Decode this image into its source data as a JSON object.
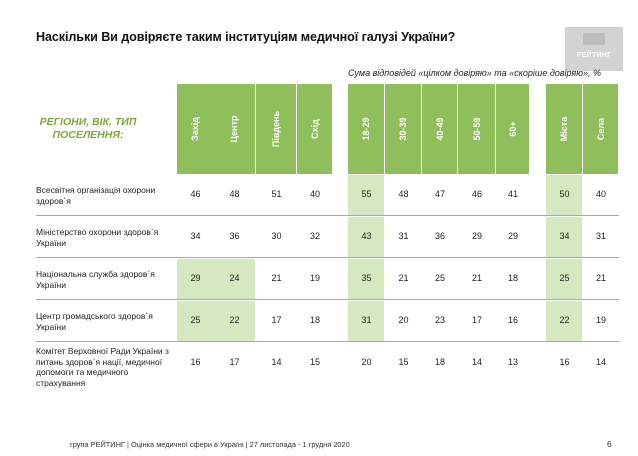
{
  "title": "Наскільки Ви довіряєте таким інституціям медичної галузі України?",
  "logo_text": "РЕЙТИНГ",
  "subtitle": "Сума відповідей «цілком довіряю» та «скоріше довіряю», %",
  "region_label_line1": "РЕГІОНИ, ВІК, ТИП",
  "region_label_line2": "ПОСЕЛЕННЯ:",
  "columns": [
    "Захід",
    "Центр",
    "Південь",
    "Схід",
    "18-29",
    "30-39",
    "40-49",
    "50-59",
    "60+",
    "Міста",
    "Села"
  ],
  "rows": [
    {
      "label": "Всесвітня організація охорони здоров`я",
      "values": [
        "46",
        "48",
        "51",
        "40",
        "55",
        "48",
        "47",
        "46",
        "41",
        "50",
        "40"
      ],
      "highlight": [
        4,
        9
      ]
    },
    {
      "label": "Міністерство охорони здоров`я України",
      "values": [
        "34",
        "36",
        "30",
        "32",
        "43",
        "31",
        "36",
        "29",
        "29",
        "34",
        "31"
      ],
      "highlight": [
        4,
        9
      ]
    },
    {
      "label": "Національна служба здоров`я України",
      "values": [
        "29",
        "24",
        "21",
        "19",
        "35",
        "21",
        "25",
        "21",
        "18",
        "25",
        "21"
      ],
      "highlight": [
        0,
        1,
        4,
        9
      ]
    },
    {
      "label": "Центр громадського здоров`я України",
      "values": [
        "25",
        "22",
        "17",
        "18",
        "31",
        "20",
        "23",
        "17",
        "16",
        "22",
        "19"
      ],
      "highlight": [
        0,
        1,
        4,
        9
      ]
    },
    {
      "label": "Комітет Верховної Ради України з питань здоров`я нації, медичної допомоги та медичного страхування",
      "values": [
        "16",
        "17",
        "14",
        "15",
        "20",
        "15",
        "18",
        "14",
        "13",
        "16",
        "14"
      ],
      "highlight": []
    }
  ],
  "footer": "група РЕЙТИНГ  |  Оцінка медичної сфери в Україні  | 27 листопада - 1 грудня 2020",
  "page_number": "6"
}
